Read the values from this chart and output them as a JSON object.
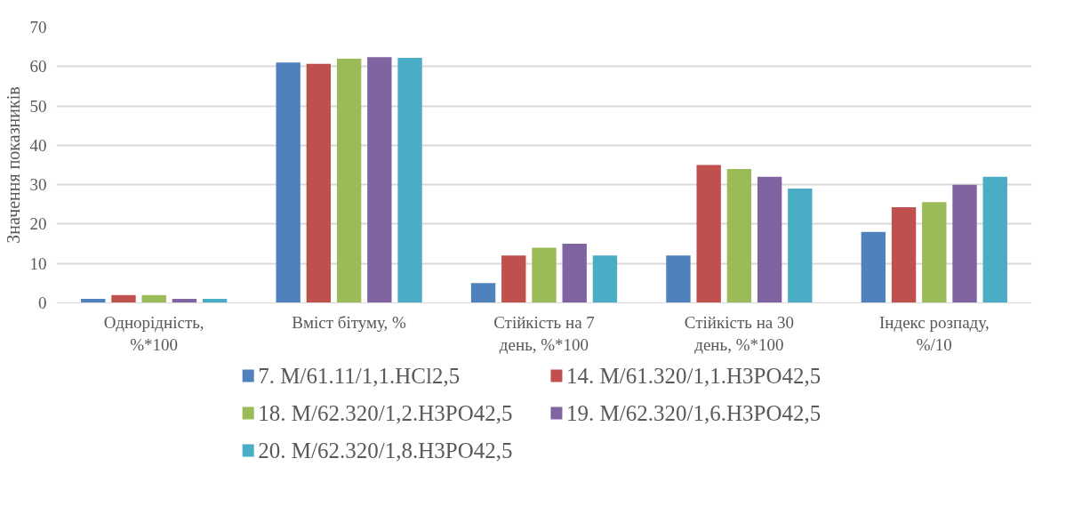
{
  "chart_data": {
    "type": "bar",
    "ylabel": "Значення показників",
    "categories": [
      "Однорідність, %*100",
      "Вміст бітуму, %",
      "Стійкість на 7 день, %*100",
      "Стійкість на 30 день, %*100",
      "Індекс розпаду, %/10"
    ],
    "series": [
      {
        "name": "7. M/61.11/1,1.HCl2,5",
        "color": "#4f81bd",
        "values": [
          1,
          61,
          5,
          12,
          18
        ]
      },
      {
        "name": "14. M/61.320/1,1.H3PO42,5",
        "color": "#c0504d",
        "values": [
          2,
          60.7,
          12,
          35,
          24.3
        ]
      },
      {
        "name": "18. M/62.320/1,2.H3PO42,5",
        "color": "#9bbb59",
        "values": [
          2,
          62,
          14,
          34,
          25.6
        ]
      },
      {
        "name": "19. M/62.320/1,6.H3PO42,5",
        "color": "#8064a2",
        "values": [
          1,
          62.4,
          15,
          32,
          30
        ]
      },
      {
        "name": "20. M/62.320/1,8.H3PO42,5",
        "color": "#4bacc6",
        "values": [
          1,
          62.2,
          12,
          29,
          32
        ]
      }
    ],
    "ylim": [
      0,
      70
    ],
    "yticks": [
      0,
      10,
      20,
      30,
      40,
      50,
      60,
      70
    ],
    "grid": "y",
    "legend": "bottom"
  }
}
